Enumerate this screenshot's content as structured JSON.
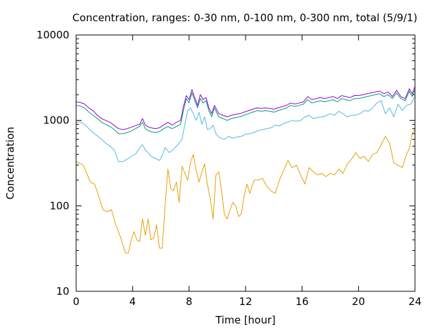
{
  "chart_data": {
    "type": "line",
    "title": "Concentration, ranges: 0-30 nm, 0-100 nm, 0-300 nm, total (5/9/1)",
    "xlabel": "Time [hour]",
    "ylabel": "Concentration",
    "xlim": [
      0,
      24
    ],
    "ylim": [
      10,
      10000
    ],
    "yscale": "log",
    "xticks": [
      "0",
      "4",
      "8",
      "12",
      "16",
      "20",
      "24"
    ],
    "xtick_values": [
      0,
      4,
      8,
      12,
      16,
      20,
      24
    ],
    "yticks": [
      "10",
      "100",
      "1000",
      "10000"
    ],
    "ytick_values": [
      10,
      100,
      1000,
      10000
    ],
    "grid": false,
    "legend": "none",
    "series": [
      {
        "color": "#e69f00",
        "x": [
          0,
          0.5,
          0.8,
          1.0,
          1.3,
          1.6,
          1.9,
          2.2,
          2.5,
          2.8,
          3.0,
          3.2,
          3.5,
          3.7,
          3.9,
          4.1,
          4.3,
          4.5,
          4.7,
          4.9,
          5.1,
          5.3,
          5.5,
          5.7,
          5.9,
          6.1,
          6.3,
          6.5,
          6.7,
          6.9,
          7.1,
          7.3,
          7.5,
          7.7,
          7.9,
          8.1,
          8.3,
          8.5,
          8.7,
          8.9,
          9.1,
          9.3,
          9.5,
          9.7,
          9.9,
          10.1,
          10.3,
          10.5,
          10.7,
          10.9,
          11.1,
          11.3,
          11.5,
          11.7,
          11.9,
          12.1,
          12.3,
          12.6,
          12.9,
          13.2,
          13.5,
          13.8,
          14.1,
          14.4,
          14.7,
          15.0,
          15.3,
          15.6,
          15.9,
          16.2,
          16.5,
          16.8,
          17.1,
          17.4,
          17.7,
          18.0,
          18.3,
          18.6,
          18.9,
          19.2,
          19.5,
          19.8,
          20.1,
          20.4,
          20.7,
          21.0,
          21.3,
          21.6,
          21.9,
          22.2,
          22.5,
          22.8,
          23.1,
          23.4,
          23.6,
          23.8,
          24.0
        ],
        "y": [
          330,
          300,
          230,
          190,
          180,
          130,
          90,
          85,
          90,
          60,
          50,
          40,
          28,
          28,
          40,
          50,
          40,
          38,
          70,
          45,
          70,
          40,
          42,
          60,
          32,
          32,
          100,
          270,
          160,
          150,
          190,
          110,
          290,
          240,
          200,
          320,
          400,
          260,
          190,
          250,
          310,
          180,
          120,
          70,
          230,
          250,
          150,
          80,
          70,
          90,
          110,
          100,
          75,
          80,
          130,
          180,
          140,
          200,
          200,
          210,
          170,
          150,
          140,
          200,
          260,
          340,
          280,
          300,
          230,
          180,
          280,
          250,
          230,
          240,
          220,
          240,
          230,
          270,
          240,
          310,
          350,
          420,
          360,
          380,
          330,
          400,
          420,
          520,
          650,
          540,
          320,
          300,
          280,
          400,
          470,
          700,
          790
        ]
      },
      {
        "color": "#56b4e9",
        "x": [
          0,
          0.3,
          0.6,
          0.9,
          1.2,
          1.5,
          1.8,
          2.1,
          2.4,
          2.7,
          3.0,
          3.3,
          3.6,
          3.9,
          4.2,
          4.5,
          4.7,
          4.9,
          5.1,
          5.3,
          5.6,
          5.9,
          6.1,
          6.3,
          6.6,
          6.9,
          7.2,
          7.5,
          7.7,
          7.9,
          8.1,
          8.3,
          8.5,
          8.7,
          8.9,
          9.1,
          9.3,
          9.5,
          9.7,
          9.9,
          10.2,
          10.5,
          10.8,
          11.1,
          11.4,
          11.7,
          12.0,
          12.3,
          12.6,
          12.9,
          13.2,
          13.5,
          13.8,
          14.1,
          14.4,
          14.7,
          15.0,
          15.3,
          15.6,
          15.9,
          16.2,
          16.5,
          16.8,
          17.1,
          17.4,
          17.7,
          18.0,
          18.3,
          18.6,
          18.9,
          19.2,
          19.5,
          19.8,
          20.1,
          20.4,
          20.7,
          21.0,
          21.3,
          21.6,
          21.9,
          22.2,
          22.5,
          22.8,
          23.1,
          23.4,
          23.7,
          24.0
        ],
        "y": [
          950,
          960,
          900,
          800,
          720,
          660,
          600,
          540,
          500,
          450,
          330,
          330,
          350,
          380,
          400,
          480,
          520,
          450,
          420,
          380,
          360,
          340,
          390,
          480,
          420,
          460,
          520,
          600,
          900,
          1300,
          1400,
          1200,
          1000,
          1250,
          900,
          1100,
          780,
          800,
          880,
          700,
          620,
          600,
          650,
          620,
          640,
          650,
          690,
          700,
          720,
          760,
          780,
          800,
          820,
          880,
          860,
          920,
          960,
          1000,
          980,
          1000,
          1100,
          1150,
          1050,
          1080,
          1100,
          1130,
          1200,
          1150,
          1280,
          1200,
          1100,
          1150,
          1150,
          1200,
          1300,
          1280,
          1400,
          1600,
          1700,
          1200,
          1400,
          1100,
          1550,
          1300,
          1500,
          1550,
          1900
        ]
      },
      {
        "color": "#009e73",
        "x": [
          0,
          0.3,
          0.6,
          0.9,
          1.2,
          1.5,
          1.8,
          2.1,
          2.4,
          2.7,
          3.0,
          3.3,
          3.6,
          3.9,
          4.2,
          4.5,
          4.7,
          4.9,
          5.1,
          5.3,
          5.6,
          5.9,
          6.2,
          6.5,
          6.8,
          7.1,
          7.4,
          7.6,
          7.8,
          8.0,
          8.2,
          8.4,
          8.6,
          8.8,
          9.0,
          9.2,
          9.4,
          9.6,
          9.8,
          10.1,
          10.4,
          10.7,
          11.0,
          11.3,
          11.6,
          11.9,
          12.2,
          12.5,
          12.8,
          13.1,
          13.4,
          13.7,
          14.0,
          14.3,
          14.6,
          14.9,
          15.2,
          15.5,
          15.8,
          16.1,
          16.4,
          16.7,
          17.0,
          17.3,
          17.6,
          17.9,
          18.2,
          18.5,
          18.8,
          19.1,
          19.4,
          19.7,
          20.0,
          20.3,
          20.6,
          20.9,
          21.2,
          21.5,
          21.8,
          22.1,
          22.4,
          22.7,
          23.0,
          23.3,
          23.6,
          23.8,
          24.0
        ],
        "y": [
          1500,
          1470,
          1400,
          1250,
          1150,
          1050,
          950,
          900,
          850,
          780,
          700,
          700,
          720,
          750,
          800,
          850,
          950,
          800,
          760,
          740,
          720,
          740,
          800,
          850,
          800,
          850,
          900,
          1300,
          1800,
          1600,
          2100,
          1700,
          1400,
          1800,
          1600,
          1700,
          1300,
          1100,
          1400,
          1100,
          1050,
          1000,
          1050,
          1080,
          1100,
          1150,
          1200,
          1250,
          1300,
          1280,
          1300,
          1280,
          1250,
          1300,
          1350,
          1400,
          1500,
          1450,
          1500,
          1550,
          1750,
          1600,
          1650,
          1700,
          1650,
          1700,
          1750,
          1650,
          1800,
          1750,
          1700,
          1800,
          1800,
          1850,
          1900,
          1950,
          2000,
          2050,
          1900,
          2000,
          1800,
          2100,
          1800,
          1700,
          2200,
          1900,
          2300
        ]
      },
      {
        "color": "#9400d3",
        "x": [
          0,
          0.3,
          0.6,
          0.9,
          1.2,
          1.5,
          1.8,
          2.1,
          2.4,
          2.7,
          3.0,
          3.3,
          3.6,
          3.9,
          4.2,
          4.5,
          4.7,
          4.9,
          5.1,
          5.3,
          5.6,
          5.9,
          6.2,
          6.5,
          6.8,
          7.1,
          7.4,
          7.6,
          7.8,
          8.0,
          8.2,
          8.4,
          8.6,
          8.8,
          9.0,
          9.2,
          9.4,
          9.6,
          9.8,
          10.1,
          10.4,
          10.7,
          11.0,
          11.3,
          11.6,
          11.9,
          12.2,
          12.5,
          12.8,
          13.1,
          13.4,
          13.7,
          14.0,
          14.3,
          14.6,
          14.9,
          15.2,
          15.5,
          15.8,
          16.1,
          16.4,
          16.7,
          17.0,
          17.3,
          17.6,
          17.9,
          18.2,
          18.5,
          18.8,
          19.1,
          19.4,
          19.7,
          20.0,
          20.3,
          20.6,
          20.9,
          21.2,
          21.5,
          21.8,
          22.1,
          22.4,
          22.7,
          23.0,
          23.3,
          23.6,
          23.8,
          24.0
        ],
        "y": [
          1650,
          1620,
          1550,
          1400,
          1300,
          1150,
          1050,
          1000,
          950,
          870,
          800,
          780,
          800,
          830,
          870,
          900,
          1050,
          880,
          840,
          820,
          800,
          820,
          880,
          950,
          880,
          950,
          1000,
          1450,
          1950,
          1750,
          2300,
          1850,
          1500,
          2000,
          1750,
          1850,
          1400,
          1200,
          1500,
          1200,
          1150,
          1100,
          1150,
          1180,
          1200,
          1250,
          1300,
          1350,
          1400,
          1380,
          1400,
          1380,
          1350,
          1400,
          1450,
          1500,
          1600,
          1550,
          1600,
          1650,
          1900,
          1750,
          1800,
          1850,
          1800,
          1850,
          1900,
          1800,
          1950,
          1900,
          1850,
          1950,
          1950,
          2000,
          2050,
          2100,
          2150,
          2200,
          2050,
          2150,
          1900,
          2250,
          1900,
          1800,
          2350,
          2050,
          2500
        ]
      }
    ]
  }
}
